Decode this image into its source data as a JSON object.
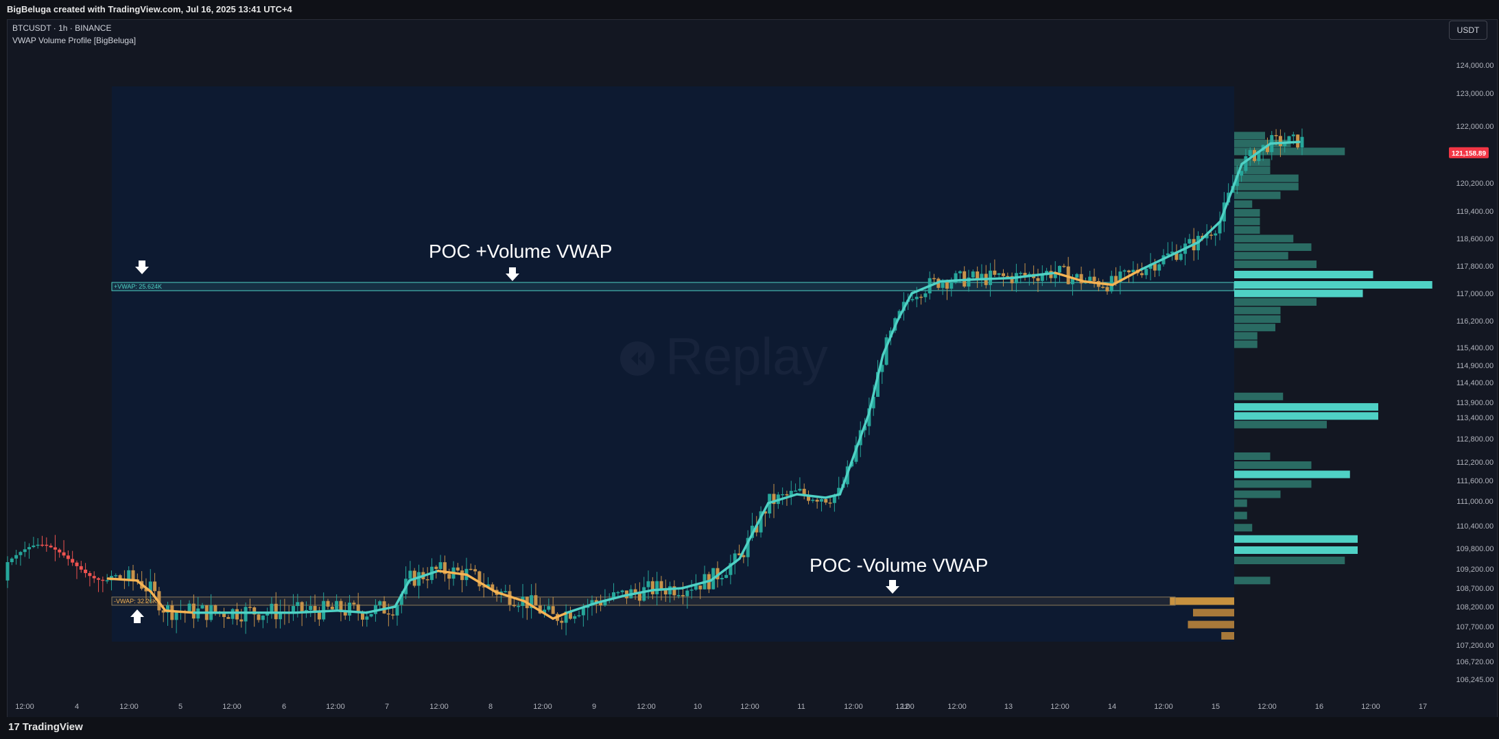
{
  "header": {
    "caption": "BigBeluga created with TradingView.com, Jul 16, 2025 13:41 UTC+4",
    "symbol_line": "BTCUSDT · 1h · BINANCE",
    "indicator_line": "VWAP Volume Profile [BigBeluga]",
    "currency_button": "USDT"
  },
  "footer": {
    "brand": "TradingView",
    "logo_glyph": "17"
  },
  "watermark": {
    "text": "Replay",
    "icon": "replay-icon"
  },
  "colors": {
    "background": "#131722",
    "zone": "#0d1a31",
    "bull": "#26a69a",
    "teal_line": "#4fd1c5",
    "orange": "#f6b454",
    "red": "#ef5350",
    "price_label": "#f23645"
  },
  "chart_data": {
    "type": "line",
    "title": "",
    "xlabel": "",
    "ylabel": "",
    "ylim": [
      106000,
      124300
    ],
    "y_ticks": [
      "124,000.00",
      "123,000.00",
      "122,000.00",
      "120,200.00",
      "119,400.00",
      "118,600.00",
      "117,800.00",
      "117,000.00",
      "116,200.00",
      "115,400.00",
      "114,900.00",
      "114,400.00",
      "113,900.00",
      "113,400.00",
      "112,800.00",
      "112,200.00",
      "111,600.00",
      "111,000.00",
      "110,400.00",
      "109,800.00",
      "109,200.00",
      "108,700.00",
      "108,200.00",
      "107,700.00",
      "107,200.00",
      "106,720.00",
      "106,245.00"
    ],
    "x_ticks": [
      "12:00",
      "4",
      "12:00",
      "5",
      "12:00",
      "6",
      "12:00",
      "7",
      "12:00",
      "8",
      "12:00",
      "9",
      "12:00",
      "10",
      "12:00",
      "11",
      "12:00",
      "12:00",
      "12",
      "12:00",
      "13",
      "12:00",
      "14",
      "12:00",
      "15",
      "12:00",
      "16",
      "12:00",
      "17"
    ],
    "last_price": "121,158.89",
    "last_price_value": 121158.89,
    "annotations": {
      "poc_plus_title": "POC +Volume VWAP",
      "poc_plus_label": "+VWAP: 25.624K",
      "poc_plus_level": 117200,
      "poc_minus_title": "POC -Volume VWAP",
      "poc_minus_label": "-VWAP: 32.26K",
      "poc_minus_level": 108350
    },
    "vwap": [
      [
        0.07,
        108950
      ],
      [
        0.09,
        108900
      ],
      [
        0.1,
        108600
      ],
      [
        0.11,
        108100
      ],
      [
        0.13,
        108050
      ],
      [
        0.16,
        108050
      ],
      [
        0.2,
        108050
      ],
      [
        0.23,
        108100
      ],
      [
        0.25,
        108050
      ],
      [
        0.27,
        108200
      ],
      [
        0.28,
        108900
      ],
      [
        0.3,
        109150
      ],
      [
        0.32,
        109050
      ],
      [
        0.34,
        108600
      ],
      [
        0.36,
        108350
      ],
      [
        0.38,
        107900
      ],
      [
        0.39,
        108050
      ],
      [
        0.41,
        108300
      ],
      [
        0.43,
        108500
      ],
      [
        0.45,
        108650
      ],
      [
        0.47,
        108700
      ],
      [
        0.49,
        108900
      ],
      [
        0.51,
        109500
      ],
      [
        0.53,
        110950
      ],
      [
        0.55,
        111200
      ],
      [
        0.57,
        111100
      ],
      [
        0.58,
        111200
      ],
      [
        0.59,
        112400
      ],
      [
        0.6,
        113500
      ],
      [
        0.61,
        115200
      ],
      [
        0.62,
        116200
      ],
      [
        0.63,
        117000
      ],
      [
        0.65,
        117350
      ],
      [
        0.67,
        117400
      ],
      [
        0.7,
        117450
      ],
      [
        0.73,
        117600
      ],
      [
        0.75,
        117350
      ],
      [
        0.77,
        117250
      ],
      [
        0.79,
        117700
      ],
      [
        0.82,
        118300
      ],
      [
        0.83,
        118500
      ],
      [
        0.845,
        119100
      ],
      [
        0.86,
        120800
      ],
      [
        0.88,
        121450
      ],
      [
        0.9,
        121500
      ]
    ],
    "series": [
      {
        "name": "Price",
        "type": "candles"
      }
    ],
    "volume_profile_teal": [
      {
        "y": 121700,
        "len": 0.12
      },
      {
        "y": 121450,
        "len": 0.22
      },
      {
        "y": 121200,
        "len": 0.43
      },
      {
        "y": 120850,
        "len": 0.14
      },
      {
        "y": 120600,
        "len": 0.14
      },
      {
        "y": 120350,
        "len": 0.25
      },
      {
        "y": 120100,
        "len": 0.25
      },
      {
        "y": 119850,
        "len": 0.18
      },
      {
        "y": 119600,
        "len": 0.07
      },
      {
        "y": 119350,
        "len": 0.1
      },
      {
        "y": 119100,
        "len": 0.1
      },
      {
        "y": 118850,
        "len": 0.1
      },
      {
        "y": 118600,
        "len": 0.23
      },
      {
        "y": 118350,
        "len": 0.3
      },
      {
        "y": 118100,
        "len": 0.21
      },
      {
        "y": 117850,
        "len": 0.32
      },
      {
        "y": 117550,
        "len": 0.54
      },
      {
        "y": 117250,
        "len": 0.77
      },
      {
        "y": 117000,
        "len": 0.5
      },
      {
        "y": 116750,
        "len": 0.32
      },
      {
        "y": 116500,
        "len": 0.18
      },
      {
        "y": 116250,
        "len": 0.18
      },
      {
        "y": 116000,
        "len": 0.16
      },
      {
        "y": 115750,
        "len": 0.09
      },
      {
        "y": 115500,
        "len": 0.09
      },
      {
        "y": 114050,
        "len": 0.19
      },
      {
        "y": 113750,
        "len": 0.56
      },
      {
        "y": 113450,
        "len": 0.56
      },
      {
        "y": 113200,
        "len": 0.36
      },
      {
        "y": 112350,
        "len": 0.14
      },
      {
        "y": 112100,
        "len": 0.3
      },
      {
        "y": 111800,
        "len": 0.45
      },
      {
        "y": 111500,
        "len": 0.3
      },
      {
        "y": 111200,
        "len": 0.18
      },
      {
        "y": 110950,
        "len": 0.05
      },
      {
        "y": 110650,
        "len": 0.05
      },
      {
        "y": 110350,
        "len": 0.07
      },
      {
        "y": 110050,
        "len": 0.48
      },
      {
        "y": 109750,
        "len": 0.48
      },
      {
        "y": 109450,
        "len": 0.43
      },
      {
        "y": 108900,
        "len": 0.14
      }
    ],
    "volume_profile_orange": [
      {
        "y": 108350,
        "len": 0.25
      },
      {
        "y": 108050,
        "len": 0.16
      },
      {
        "y": 107750,
        "len": 0.18
      },
      {
        "y": 107450,
        "len": 0.05
      }
    ]
  }
}
